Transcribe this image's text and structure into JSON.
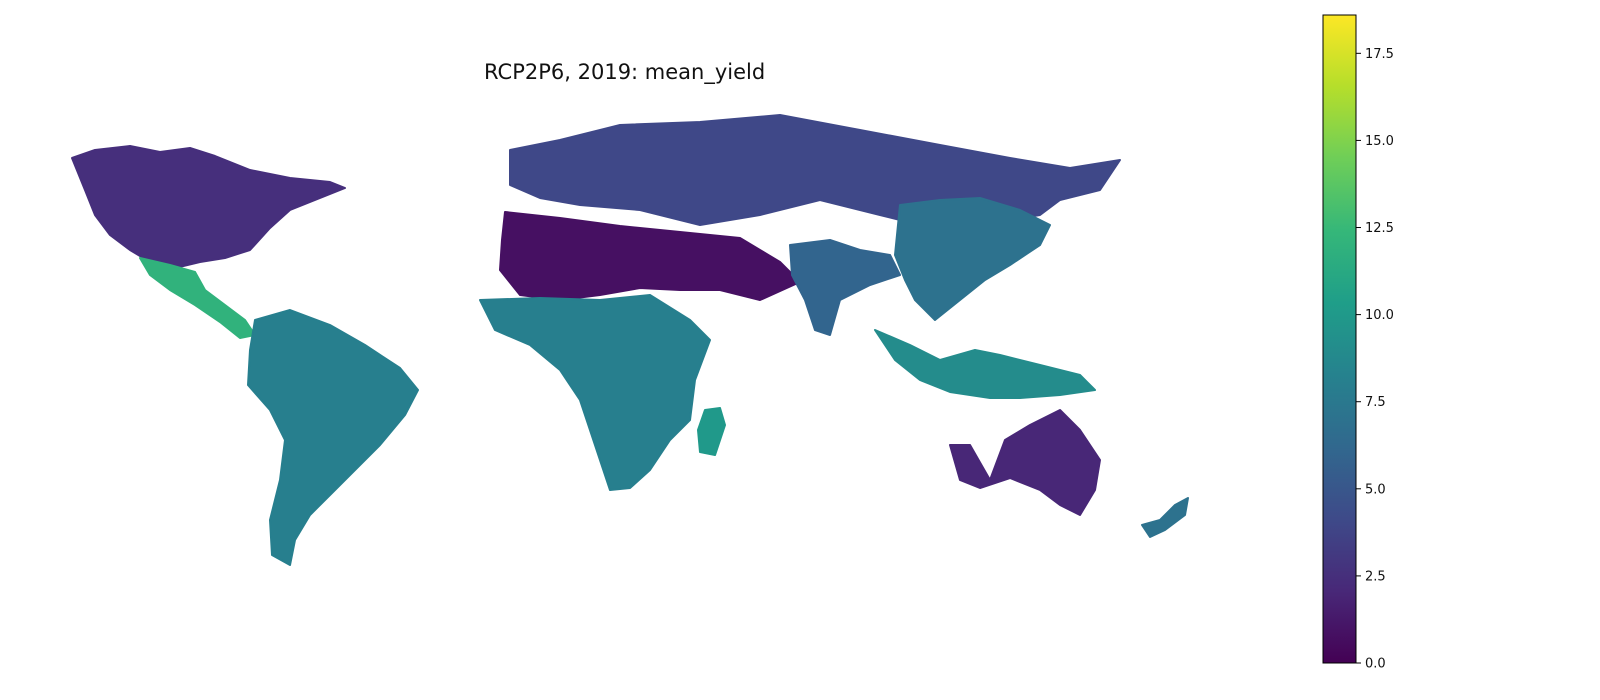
{
  "title": "RCP2P6, 2019: mean_yield",
  "colorbar": {
    "min": 0,
    "max": 18.6,
    "ticks": [
      "0.0",
      "2.5",
      "5.0",
      "7.5",
      "10.0",
      "12.5",
      "15.0",
      "17.5"
    ],
    "tick_values": [
      0,
      2.5,
      5,
      7.5,
      10,
      12.5,
      15,
      17.5
    ],
    "colormap": "viridis",
    "colormap_stops": [
      "#440154",
      "#482878",
      "#3e4a89",
      "#31688e",
      "#26828e",
      "#1f9e89",
      "#35b779",
      "#6ece58",
      "#b5de2b",
      "#fde725"
    ]
  },
  "map": {
    "regions": [
      {
        "name": "North America",
        "value": 2.5
      },
      {
        "name": "Mexico and Central America",
        "value": 12
      },
      {
        "name": "South America",
        "value": 8
      },
      {
        "name": "Europe and Northern Asia",
        "value": 4
      },
      {
        "name": "North Africa and Middle East",
        "value": 0.8
      },
      {
        "name": "Sub-Saharan Africa",
        "value": 8
      },
      {
        "name": "Madagascar",
        "value": 10
      },
      {
        "name": "South Asia",
        "value": 6
      },
      {
        "name": "East Asia",
        "value": 7
      },
      {
        "name": "Southeast Asia",
        "value": 9
      },
      {
        "name": "Australia",
        "value": 2
      },
      {
        "name": "New Zealand",
        "value": 7
      }
    ]
  }
}
